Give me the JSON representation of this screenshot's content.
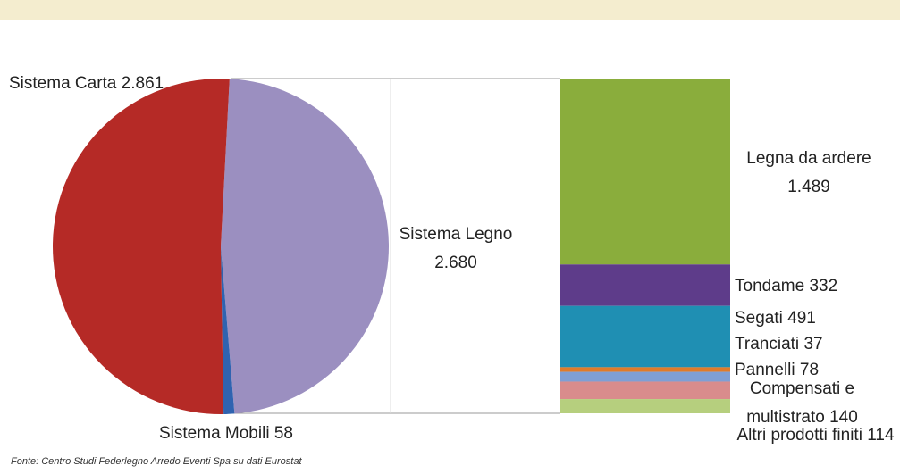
{
  "chart_data": [
    {
      "type": "pie",
      "categories": [
        "Sistema Carta",
        "Sistema Legno",
        "Sistema Mobili"
      ],
      "values": [
        2861,
        2680,
        58
      ],
      "value_labels": [
        "2.861",
        "2.680",
        "58"
      ],
      "colors": [
        "#b52a26",
        "#9b8fc0",
        "#2f63b0"
      ]
    },
    {
      "type": "stacked-bar",
      "categories": [
        "Legna da ardere",
        "Tondame",
        "Segati",
        "Tranciati",
        "Pannelli",
        "Compensati e multistrato",
        "Altri prodotti finiti"
      ],
      "values": [
        1489,
        332,
        491,
        37,
        78,
        140,
        114
      ],
      "value_labels": [
        "1.489",
        "332",
        "491",
        "37",
        "78",
        "140",
        "114"
      ],
      "colors": [
        "#8aad3c",
        "#5e3c8a",
        "#1f8fb3",
        "#e07b2a",
        "#7f9fd4",
        "#d98c8c",
        "#b6cf7e"
      ]
    }
  ],
  "source": "Fonte: Centro Studi Federlegno Arredo Eventi Spa su dati Eurostat"
}
